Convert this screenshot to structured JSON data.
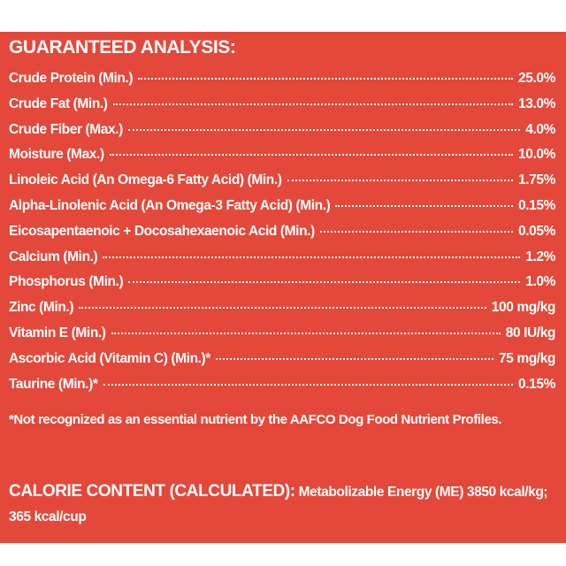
{
  "title": "GUARANTEED ANALYSIS:",
  "rows": [
    {
      "label": "Crude Protein (Min.)",
      "value": "25.0%"
    },
    {
      "label": "Crude Fat (Min.)",
      "value": "13.0%"
    },
    {
      "label": "Crude Fiber (Max.)",
      "value": "4.0%"
    },
    {
      "label": "Moisture (Max.)",
      "value": "10.0%"
    },
    {
      "label": "Linoleic Acid (An Omega-6 Fatty Acid) (Min.)",
      "value": "1.75%"
    },
    {
      "label": "Alpha-Linolenic Acid (An Omega-3 Fatty Acid) (Min.)",
      "value": "0.15%"
    },
    {
      "label": "Eicosapentaenoic + Docosahexaenoic Acid (Min.)",
      "value": "0.05%"
    },
    {
      "label": "Calcium (Min.)",
      "value": "1.2%"
    },
    {
      "label": "Phosphorus (Min.)",
      "value": "1.0%"
    },
    {
      "label": "Zinc (Min.)",
      "value": "100 mg/kg"
    },
    {
      "label": "Vitamin E (Min.)",
      "value": "80 IU/kg"
    },
    {
      "label": "Ascorbic Acid (Vitamin C) (Min.)*",
      "value": "75 mg/kg"
    },
    {
      "label": "Taurine (Min.)*",
      "value": "0.15%"
    }
  ],
  "footnote": "*Not recognized as an essential nutrient by the AAFCO Dog Food Nutrient Profiles.",
  "calorie": {
    "heading": "CALORIE CONTENT (CALCULATED):",
    "text": "Metabolizable Energy (ME) 3850 kcal/kg; 365 kcal/cup"
  }
}
